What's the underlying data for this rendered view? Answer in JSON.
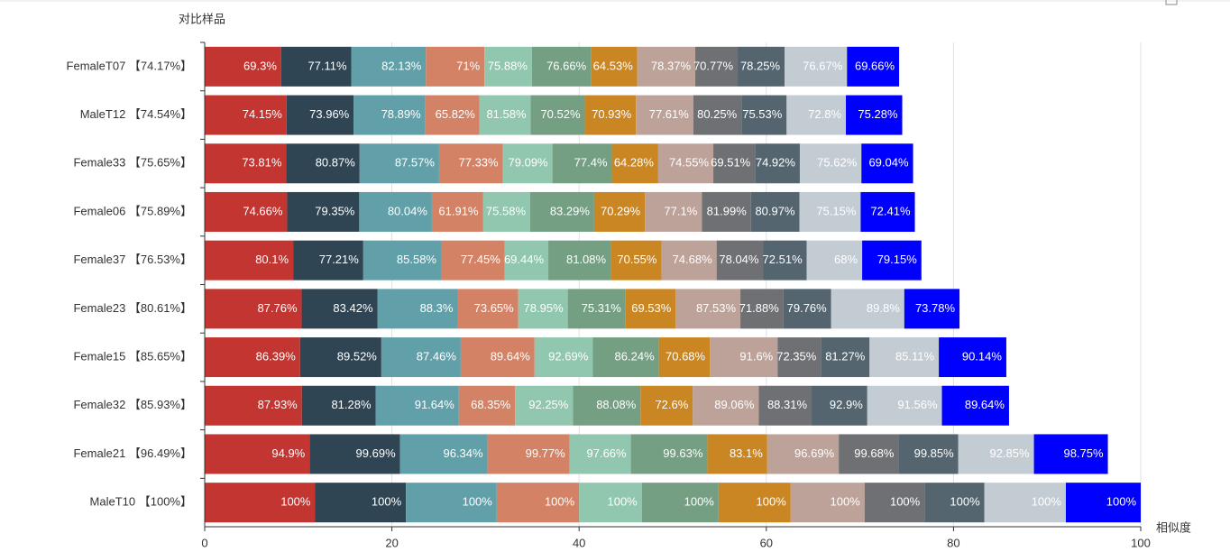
{
  "chart_data": {
    "type": "stacked-hbar",
    "y_axis_label": "对比样品",
    "x_axis_label": "相似度",
    "categories": [
      "FemaleT07 【74.17%】",
      "MaleT12 【74.54%】",
      "Female33 【75.65%】",
      "Female06 【75.89%】",
      "Female37 【76.53%】",
      "Female23 【80.61%】",
      "Female15 【85.65%】",
      "Female32 【85.93%】",
      "Female21 【96.49%】",
      "MaleT10 【100%】"
    ],
    "xlim": [
      0,
      100
    ],
    "xticks": [
      0,
      20,
      40,
      60,
      80,
      100
    ],
    "grid": true,
    "series": [
      {
        "color": "#c23531",
        "values": [
          8.18,
          8.75,
          8.71,
          8.81,
          9.45,
          10.36,
          10.19,
          10.38,
          11.2,
          11.8
        ],
        "value_labels": [
          "69.3%",
          "74.15%",
          "73.81%",
          "74.66%",
          "80.1%",
          "87.76%",
          "86.39%",
          "87.93%",
          "94.9%",
          "100%"
        ]
      },
      {
        "color": "#2f4554",
        "values": [
          7.48,
          7.17,
          7.84,
          7.7,
          7.49,
          8.09,
          8.68,
          7.88,
          9.67,
          9.7
        ],
        "value_labels": [
          "77.11%",
          "73.96%",
          "80.87%",
          "79.35%",
          "77.21%",
          "83.42%",
          "89.52%",
          "81.28%",
          "99.69%",
          "100%"
        ]
      },
      {
        "color": "#61a0a8",
        "values": [
          7.97,
          7.65,
          8.49,
          7.76,
          8.3,
          8.57,
          8.48,
          8.89,
          9.34,
          9.7
        ],
        "value_labels": [
          "82.13%",
          "78.89%",
          "87.57%",
          "80.04%",
          "85.58%",
          "88.3%",
          "87.46%",
          "91.64%",
          "96.34%",
          "100%"
        ]
      },
      {
        "color": "#d48265",
        "values": [
          6.25,
          5.79,
          6.81,
          5.45,
          6.82,
          6.48,
          7.89,
          6.01,
          8.78,
          8.8
        ],
        "value_labels": [
          "71%",
          "65.82%",
          "77.33%",
          "61.91%",
          "77.45%",
          "73.65%",
          "89.64%",
          "68.35%",
          "99.77%",
          "100%"
        ]
      },
      {
        "color": "#91c7ae",
        "values": [
          5.08,
          5.47,
          5.3,
          5.06,
          4.65,
          5.29,
          6.21,
          6.18,
          6.54,
          6.7
        ],
        "value_labels": [
          "75.88%",
          "81.58%",
          "79.09%",
          "75.58%",
          "69.44%",
          "78.95%",
          "92.69%",
          "92.25%",
          "97.66%",
          "100%"
        ]
      },
      {
        "color": "#749f83",
        "values": [
          6.29,
          5.78,
          6.35,
          6.83,
          6.65,
          6.18,
          7.07,
          7.22,
          8.17,
          8.2
        ],
        "value_labels": [
          "76.66%",
          "70.52%",
          "77.4%",
          "83.29%",
          "81.08%",
          "75.31%",
          "86.24%",
          "88.08%",
          "99.63%",
          "100%"
        ]
      },
      {
        "color": "#ca8622",
        "values": [
          4.97,
          5.46,
          4.95,
          5.41,
          5.43,
          5.35,
          5.44,
          5.59,
          6.4,
          7.7
        ],
        "value_labels": [
          "64.53%",
          "70.93%",
          "64.28%",
          "70.29%",
          "70.55%",
          "69.53%",
          "70.68%",
          "72.6%",
          "83.1%",
          "100%"
        ]
      },
      {
        "color": "#bda29a",
        "values": [
          6.19,
          6.13,
          5.89,
          6.09,
          5.9,
          6.91,
          7.24,
          7.04,
          7.64,
          7.9
        ],
        "value_labels": [
          "78.37%",
          "77.61%",
          "74.55%",
          "77.1%",
          "74.68%",
          "87.53%",
          "91.6%",
          "89.06%",
          "96.69%",
          "100%"
        ]
      },
      {
        "color": "#6e7074",
        "values": [
          4.53,
          5.14,
          4.45,
          5.25,
          4.99,
          4.6,
          4.63,
          5.65,
          6.38,
          6.4
        ],
        "value_labels": [
          "70.77%",
          "80.25%",
          "69.51%",
          "81.99%",
          "78.04%",
          "71.88%",
          "72.35%",
          "88.31%",
          "99.68%",
          "100%"
        ]
      },
      {
        "color": "#546570",
        "values": [
          5.01,
          4.83,
          4.79,
          5.18,
          4.64,
          5.1,
          5.2,
          5.95,
          6.39,
          6.4
        ],
        "value_labels": [
          "78.25%",
          "75.53%",
          "74.92%",
          "80.97%",
          "72.51%",
          "79.76%",
          "81.27%",
          "92.9%",
          "99.85%",
          "100%"
        ]
      },
      {
        "color": "#c4ccd3",
        "values": [
          6.67,
          6.33,
          6.58,
          6.54,
          5.92,
          7.81,
          7.4,
          7.97,
          8.08,
          8.7
        ],
        "value_labels": [
          "76.67%",
          "72.8%",
          "75.62%",
          "75.15%",
          "68%",
          "89.8%",
          "85.11%",
          "91.56%",
          "92.85%",
          "100%"
        ]
      },
      {
        "color": "#0000ff",
        "values": [
          5.57,
          6.02,
          5.52,
          5.79,
          6.33,
          5.9,
          7.21,
          7.17,
          7.9,
          8.0
        ],
        "value_labels": [
          "69.66%",
          "75.28%",
          "69.04%",
          "72.41%",
          "79.15%",
          "73.78%",
          "90.14%",
          "89.64%",
          "98.75%",
          "100%"
        ]
      }
    ]
  }
}
